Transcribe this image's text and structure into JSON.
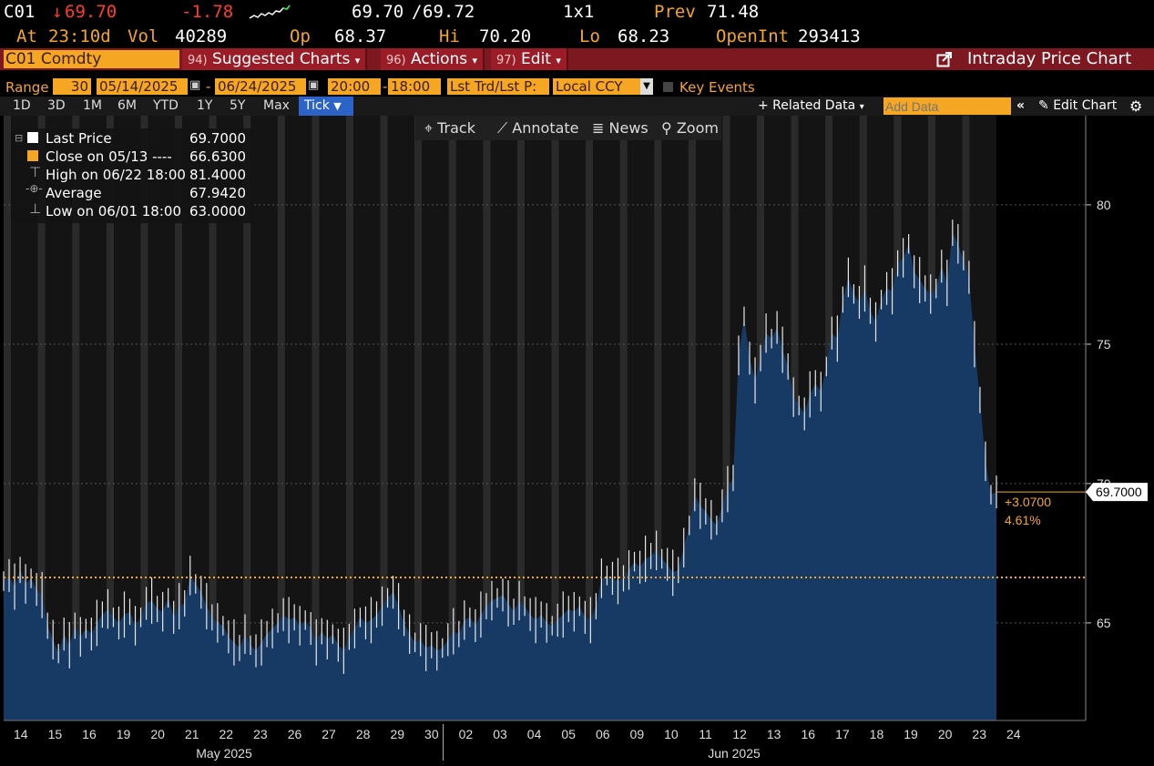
{
  "quote": {
    "ticker": "C01",
    "last": "69.70",
    "arrow": "↓",
    "change": "-1.78",
    "bidask_bid": "69.70",
    "bidask_ask": "69.72",
    "size": "1x1",
    "prev_label": "Prev",
    "prev_value": "71.48",
    "at_label": "At",
    "at_value": "23:10d",
    "vol_label": "Vol",
    "vol_value": "40289",
    "op_label": "Op",
    "op_value": "68.37",
    "hi_label": "Hi",
    "hi_value": "70.20",
    "lo_label": "Lo",
    "lo_value": "68.23",
    "oi_label": "OpenInt",
    "oi_value": "293413"
  },
  "command_bar": {
    "security": "C01 Comdty",
    "menus": [
      {
        "num": "94)",
        "label": "Suggested Charts",
        "caret": "▾"
      },
      {
        "num": "96)",
        "label": "Actions",
        "caret": "▾"
      },
      {
        "num": "97)",
        "label": "Edit",
        "caret": "▾"
      }
    ],
    "title": "Intraday Price Chart"
  },
  "range_bar": {
    "label": "Range",
    "interval": "30",
    "start_date": "05/14/2025",
    "end_date": "06/24/2025",
    "start_time": "20:00",
    "end_time": "18:00",
    "mode": "Lst Trd/Lst P:",
    "currency": "Local CCY",
    "key_events": "Key Events"
  },
  "timeframe_bar": {
    "buttons": [
      "1D",
      "3D",
      "1M",
      "6M",
      "YTD",
      "1Y",
      "5Y",
      "Max"
    ],
    "active": "Tick",
    "related": "+ Related Data",
    "add_data_placeholder": "Add Data",
    "edit_chart": "Edit Chart"
  },
  "tools": [
    "Track",
    "Annotate",
    "News",
    "Zoom"
  ],
  "legend": {
    "rows": [
      {
        "label": "Last Price",
        "value": "69.7000"
      },
      {
        "label": "Close on 05/13 ----",
        "value": "66.6300"
      },
      {
        "label": "High on 06/22 18:00",
        "value": "81.4000"
      },
      {
        "label": "Average",
        "value": "67.9420"
      },
      {
        "label": "Low on 06/01 18:00",
        "value": "63.0000"
      }
    ]
  },
  "colors": {
    "area": "#163a63",
    "last_tag": "#ffffff",
    "close_line": "#f5a623",
    "bar_red": "#7d1720",
    "accent": "#f5a623"
  },
  "chart_data": {
    "type": "area",
    "y_axis_ticks": [
      "65",
      "70",
      "75",
      "80"
    ],
    "ylim": [
      61.5,
      83.2
    ],
    "last_price_tag": "69.7000",
    "change_abs": "+3.0700",
    "change_pct": "4.61%",
    "reference_close": 66.63,
    "x_day_labels": [
      "14",
      "15",
      "16",
      "19",
      "20",
      "21",
      "22",
      "23",
      "26",
      "27",
      "28",
      "29",
      "30",
      "02",
      "03",
      "04",
      "05",
      "06",
      "09",
      "10",
      "11",
      "12",
      "13",
      "16",
      "17",
      "18",
      "19",
      "20",
      "23",
      "24"
    ],
    "month_labels": [
      "May 2025",
      "Jun 2025"
    ],
    "values": [
      66.5,
      66.7,
      66.3,
      66.9,
      66.4,
      66.6,
      66.2,
      66.0,
      64.9,
      64.4,
      63.9,
      64.6,
      64.2,
      64.9,
      64.5,
      64.8,
      64.6,
      65.0,
      65.3,
      65.5,
      65.2,
      65.0,
      65.3,
      65.4,
      64.9,
      65.2,
      65.7,
      65.8,
      65.5,
      65.4,
      65.9,
      65.2,
      65.6,
      65.7,
      66.7,
      66.4,
      66.1,
      65.6,
      65.2,
      65.0,
      64.9,
      64.5,
      64.3,
      64.1,
      64.6,
      64.2,
      64.0,
      64.3,
      64.6,
      64.8,
      65.0,
      65.3,
      65.1,
      65.2,
      64.9,
      65.1,
      64.8,
      64.3,
      64.7,
      64.4,
      64.6,
      64.2,
      64.0,
      64.5,
      64.8,
      65.2,
      65.0,
      65.1,
      65.3,
      65.6,
      65.9,
      66.1,
      65.6,
      65.0,
      64.6,
      64.3,
      64.4,
      64.1,
      64.2,
      64.0,
      64.1,
      64.4,
      64.7,
      64.6,
      65.1,
      65.2,
      64.9,
      65.3,
      65.6,
      65.8,
      65.9,
      66.0,
      65.7,
      65.4,
      65.8,
      65.6,
      65.3,
      65.1,
      65.3,
      65.0,
      64.9,
      65.1,
      65.3,
      65.5,
      65.4,
      65.6,
      65.2,
      65.1,
      65.6,
      66.6,
      66.7,
      66.6,
      66.5,
      66.6,
      66.9,
      67.2,
      67.0,
      67.3,
      67.4,
      67.6,
      67.3,
      67.1,
      66.8,
      66.9,
      67.7,
      68.5,
      69.6,
      69.2,
      69.0,
      68.7,
      68.5,
      69.2,
      69.8,
      70.2,
      74.6,
      76.0,
      74.5,
      73.7,
      74.5,
      75.4,
      75.2,
      75.6,
      74.8,
      74.2,
      73.1,
      72.8,
      72.5,
      73.2,
      73.6,
      73.3,
      74.2,
      75.4,
      75.2,
      76.6,
      77.4,
      76.8,
      76.5,
      77.0,
      76.2,
      75.8,
      76.6,
      77.0,
      76.9,
      77.9,
      78.1,
      78.6,
      77.6,
      77.3,
      77.0,
      76.8,
      77.0,
      77.8,
      77.2,
      79.0,
      78.6,
      78.0,
      77.4,
      75.0,
      73.0,
      70.8,
      69.6,
      69.7
    ]
  }
}
